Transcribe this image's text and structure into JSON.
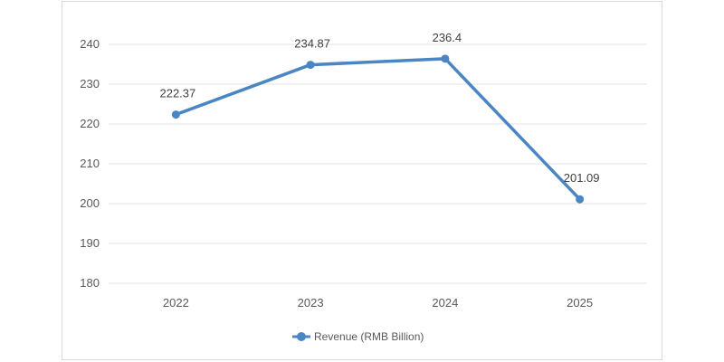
{
  "chart_data": {
    "type": "line",
    "categories": [
      "2022",
      "2023",
      "2024",
      "2025"
    ],
    "series": [
      {
        "name": "Revenue (RMB Billion)",
        "values": [
          222.37,
          234.87,
          236.4,
          201.09
        ],
        "color": "#4a86c3"
      }
    ],
    "data_labels": [
      "222.37",
      "234.87",
      "236.4",
      "201.09"
    ],
    "ylim": [
      180,
      240
    ],
    "yticks": [
      180,
      190,
      200,
      210,
      220,
      230,
      240
    ],
    "grid": true,
    "legend_position": "bottom"
  }
}
